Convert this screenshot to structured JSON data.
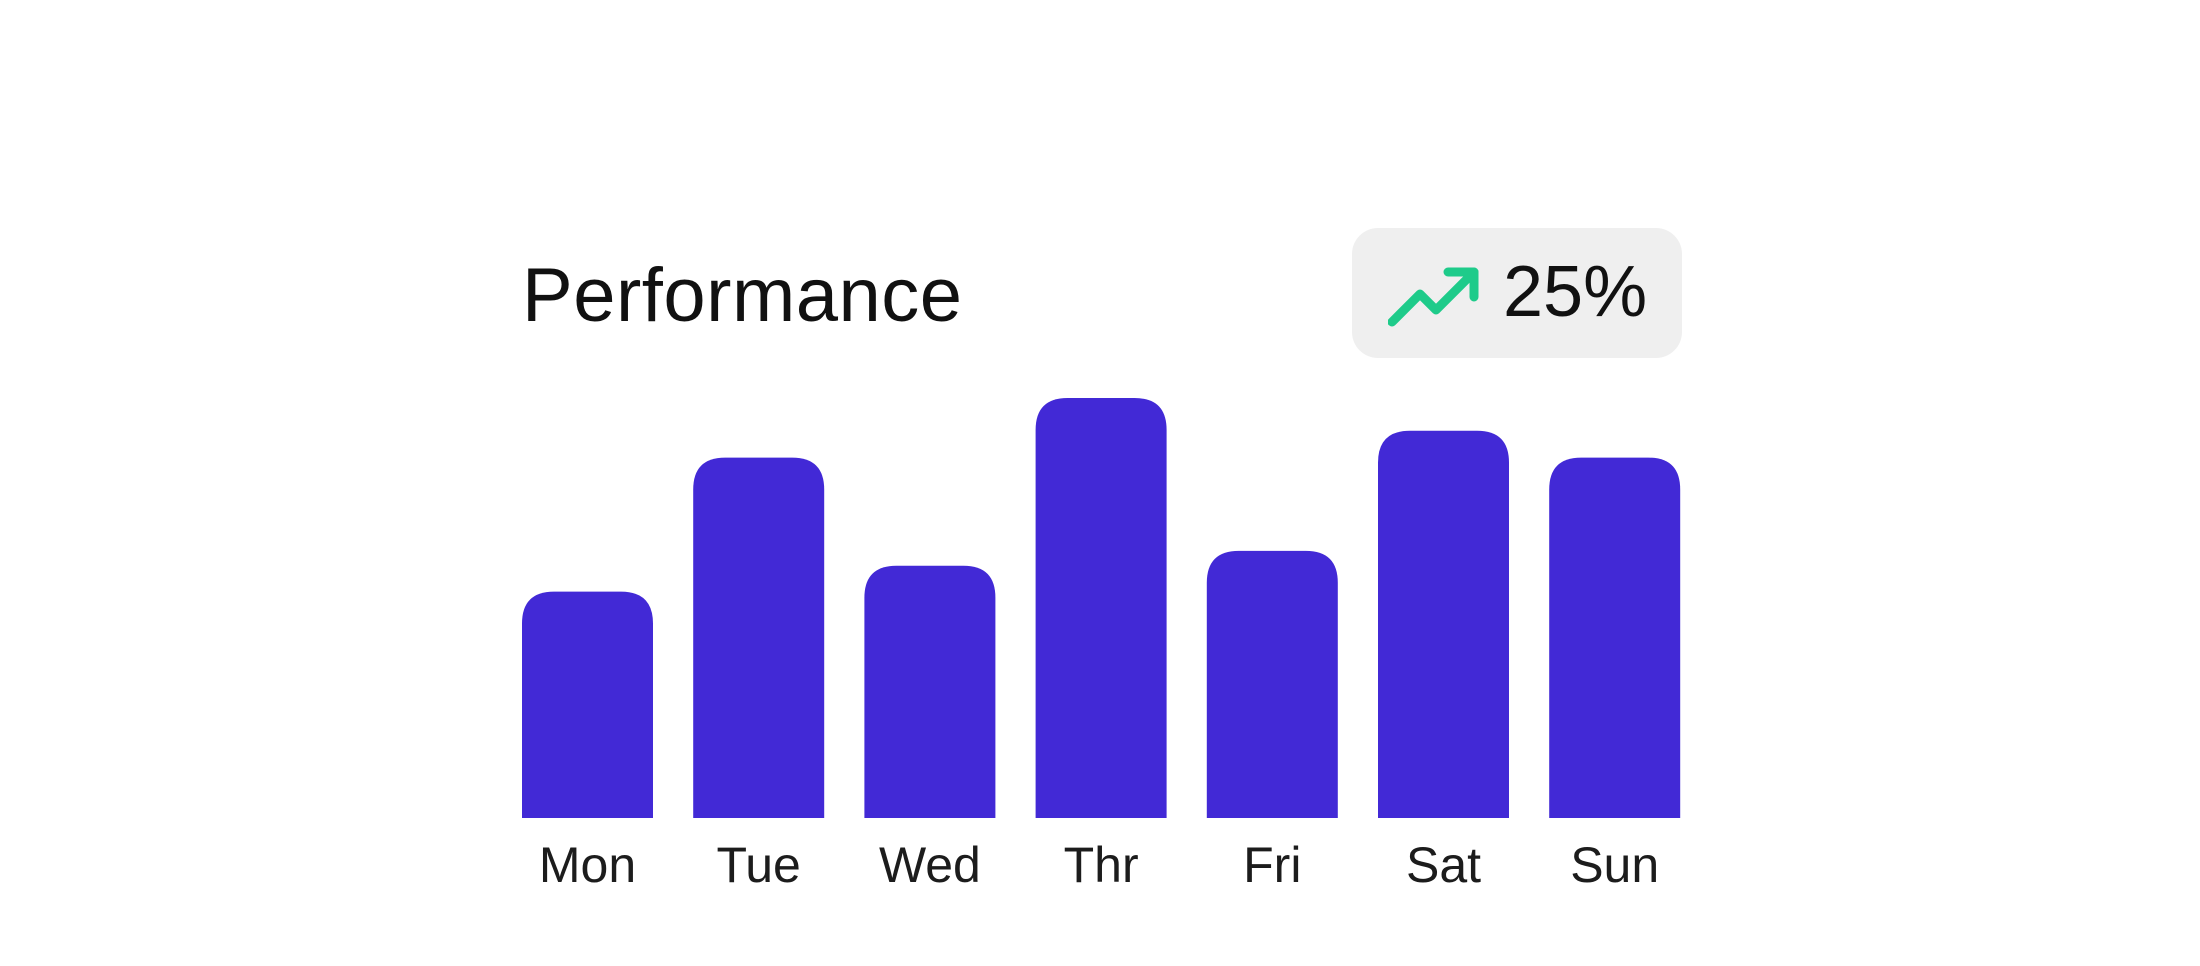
{
  "card": {
    "title": "Performance",
    "trend": {
      "icon": "trending-up-icon",
      "value": "25%",
      "color": "#1ecb8a"
    }
  },
  "chart_data": {
    "type": "bar",
    "title": "Performance",
    "categories": [
      "Mon",
      "Tue",
      "Wed",
      "Thr",
      "Fri",
      "Sat",
      "Sun"
    ],
    "values": [
      228,
      363,
      254,
      423,
      269,
      390,
      363
    ],
    "ylim": [
      0,
      423
    ],
    "xlabel": "",
    "ylabel": "",
    "grid": false,
    "bar_color": "#4229d6"
  }
}
